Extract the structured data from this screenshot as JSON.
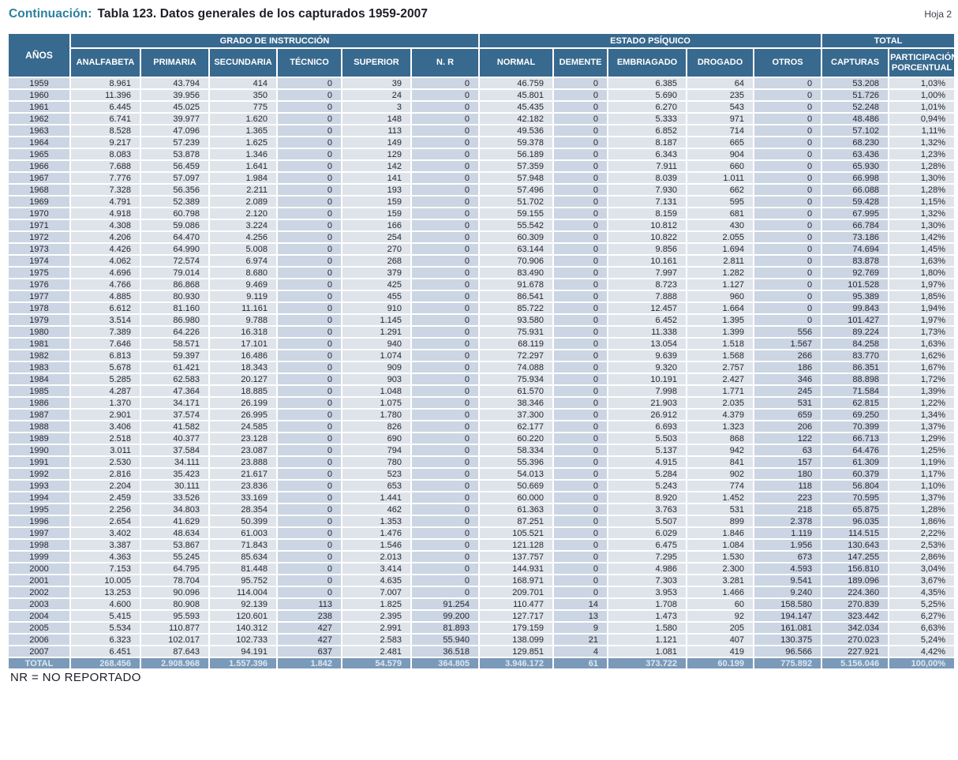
{
  "page": {
    "title_prefix": "Continuación:",
    "title_main": "Tabla 123.  Datos generales de los capturados 1959-2007",
    "sheet_label": "Hoja 2",
    "footnote": "NR = NO REPORTADO"
  },
  "colors": {
    "title_accent": "#2a7f9e",
    "header_bg": "#38698e",
    "row_bg": "#dfe3ea",
    "row_shade_bg": "#cbd5e3",
    "total_row_bg": "#7b9ab9",
    "total_row_text": "#dce8f3"
  },
  "table": {
    "groups": [
      "GRADO DE INSTRUCCIÓN",
      "ESTADO PSÍQUICO",
      "TOTAL"
    ],
    "columns": [
      "AÑOS",
      "ANALFABETA",
      "PRIMARIA",
      "SECUNDARIA",
      "TÉCNICO",
      "SUPERIOR",
      "N. R",
      "NORMAL",
      "DEMENTE",
      "EMBRIAGADO",
      "DROGADO",
      "OTROS",
      "CAPTURAS",
      "PARTICIPACIÓN PORCENTUAL"
    ],
    "rows": [
      [
        "1959",
        "8.961",
        "43.794",
        "414",
        "0",
        "39",
        "0",
        "46.759",
        "0",
        "6.385",
        "64",
        "0",
        "53.208",
        "1,03%"
      ],
      [
        "1960",
        "11.396",
        "39.956",
        "350",
        "0",
        "24",
        "0",
        "45.801",
        "0",
        "5.690",
        "235",
        "0",
        "51.726",
        "1,00%"
      ],
      [
        "1961",
        "6.445",
        "45.025",
        "775",
        "0",
        "3",
        "0",
        "45.435",
        "0",
        "6.270",
        "543",
        "0",
        "52.248",
        "1,01%"
      ],
      [
        "1962",
        "6.741",
        "39.977",
        "1.620",
        "0",
        "148",
        "0",
        "42.182",
        "0",
        "5.333",
        "971",
        "0",
        "48.486",
        "0,94%"
      ],
      [
        "1963",
        "8.528",
        "47.096",
        "1.365",
        "0",
        "113",
        "0",
        "49.536",
        "0",
        "6.852",
        "714",
        "0",
        "57.102",
        "1,11%"
      ],
      [
        "1964",
        "9.217",
        "57.239",
        "1.625",
        "0",
        "149",
        "0",
        "59.378",
        "0",
        "8.187",
        "665",
        "0",
        "68.230",
        "1,32%"
      ],
      [
        "1965",
        "8.083",
        "53.878",
        "1.346",
        "0",
        "129",
        "0",
        "56.189",
        "0",
        "6.343",
        "904",
        "0",
        "63.436",
        "1,23%"
      ],
      [
        "1966",
        "7.688",
        "56.459",
        "1.641",
        "0",
        "142",
        "0",
        "57.359",
        "0",
        "7.911",
        "660",
        "0",
        "65.930",
        "1,28%"
      ],
      [
        "1967",
        "7.776",
        "57.097",
        "1.984",
        "0",
        "141",
        "0",
        "57.948",
        "0",
        "8.039",
        "1.011",
        "0",
        "66.998",
        "1,30%"
      ],
      [
        "1968",
        "7.328",
        "56.356",
        "2.211",
        "0",
        "193",
        "0",
        "57.496",
        "0",
        "7.930",
        "662",
        "0",
        "66.088",
        "1,28%"
      ],
      [
        "1969",
        "4.791",
        "52.389",
        "2.089",
        "0",
        "159",
        "0",
        "51.702",
        "0",
        "7.131",
        "595",
        "0",
        "59.428",
        "1,15%"
      ],
      [
        "1970",
        "4.918",
        "60.798",
        "2.120",
        "0",
        "159",
        "0",
        "59.155",
        "0",
        "8.159",
        "681",
        "0",
        "67.995",
        "1,32%"
      ],
      [
        "1971",
        "4.308",
        "59.086",
        "3.224",
        "0",
        "166",
        "0",
        "55.542",
        "0",
        "10.812",
        "430",
        "0",
        "66.784",
        "1,30%"
      ],
      [
        "1972",
        "4.206",
        "64.470",
        "4.256",
        "0",
        "254",
        "0",
        "60.309",
        "0",
        "10.822",
        "2.055",
        "0",
        "73.186",
        "1,42%"
      ],
      [
        "1973",
        "4.426",
        "64.990",
        "5.008",
        "0",
        "270",
        "0",
        "63.144",
        "0",
        "9.856",
        "1.694",
        "0",
        "74.694",
        "1,45%"
      ],
      [
        "1974",
        "4.062",
        "72.574",
        "6.974",
        "0",
        "268",
        "0",
        "70.906",
        "0",
        "10.161",
        "2.811",
        "0",
        "83.878",
        "1,63%"
      ],
      [
        "1975",
        "4.696",
        "79.014",
        "8.680",
        "0",
        "379",
        "0",
        "83.490",
        "0",
        "7.997",
        "1.282",
        "0",
        "92.769",
        "1,80%"
      ],
      [
        "1976",
        "4.766",
        "86.868",
        "9.469",
        "0",
        "425",
        "0",
        "91.678",
        "0",
        "8.723",
        "1.127",
        "0",
        "101.528",
        "1,97%"
      ],
      [
        "1977",
        "4.885",
        "80.930",
        "9.119",
        "0",
        "455",
        "0",
        "86.541",
        "0",
        "7.888",
        "960",
        "0",
        "95.389",
        "1,85%"
      ],
      [
        "1978",
        "6.612",
        "81.160",
        "11.161",
        "0",
        "910",
        "0",
        "85.722",
        "0",
        "12.457",
        "1.664",
        "0",
        "99.843",
        "1,94%"
      ],
      [
        "1979",
        "3.514",
        "86.980",
        "9.788",
        "0",
        "1.145",
        "0",
        "93.580",
        "0",
        "6.452",
        "1.395",
        "0",
        "101.427",
        "1,97%"
      ],
      [
        "1980",
        "7.389",
        "64.226",
        "16.318",
        "0",
        "1.291",
        "0",
        "75.931",
        "0",
        "11.338",
        "1.399",
        "556",
        "89.224",
        "1,73%"
      ],
      [
        "1981",
        "7.646",
        "58.571",
        "17.101",
        "0",
        "940",
        "0",
        "68.119",
        "0",
        "13.054",
        "1.518",
        "1.567",
        "84.258",
        "1,63%"
      ],
      [
        "1982",
        "6.813",
        "59.397",
        "16.486",
        "0",
        "1.074",
        "0",
        "72.297",
        "0",
        "9.639",
        "1.568",
        "266",
        "83.770",
        "1,62%"
      ],
      [
        "1983",
        "5.678",
        "61.421",
        "18.343",
        "0",
        "909",
        "0",
        "74.088",
        "0",
        "9.320",
        "2.757",
        "186",
        "86.351",
        "1,67%"
      ],
      [
        "1984",
        "5.285",
        "62.583",
        "20.127",
        "0",
        "903",
        "0",
        "75.934",
        "0",
        "10.191",
        "2.427",
        "346",
        "88.898",
        "1,72%"
      ],
      [
        "1985",
        "4.287",
        "47.364",
        "18.885",
        "0",
        "1.048",
        "0",
        "61.570",
        "0",
        "7.998",
        "1.771",
        "245",
        "71.584",
        "1,39%"
      ],
      [
        "1986",
        "1.370",
        "34.171",
        "26.199",
        "0",
        "1.075",
        "0",
        "38.346",
        "0",
        "21.903",
        "2.035",
        "531",
        "62.815",
        "1,22%"
      ],
      [
        "1987",
        "2.901",
        "37.574",
        "26.995",
        "0",
        "1.780",
        "0",
        "37.300",
        "0",
        "26.912",
        "4.379",
        "659",
        "69.250",
        "1,34%"
      ],
      [
        "1988",
        "3.406",
        "41.582",
        "24.585",
        "0",
        "826",
        "0",
        "62.177",
        "0",
        "6.693",
        "1.323",
        "206",
        "70.399",
        "1,37%"
      ],
      [
        "1989",
        "2.518",
        "40.377",
        "23.128",
        "0",
        "690",
        "0",
        "60.220",
        "0",
        "5.503",
        "868",
        "122",
        "66.713",
        "1,29%"
      ],
      [
        "1990",
        "3.011",
        "37.584",
        "23.087",
        "0",
        "794",
        "0",
        "58.334",
        "0",
        "5.137",
        "942",
        "63",
        "64.476",
        "1,25%"
      ],
      [
        "1991",
        "2.530",
        "34.111",
        "23.888",
        "0",
        "780",
        "0",
        "55.396",
        "0",
        "4.915",
        "841",
        "157",
        "61.309",
        "1,19%"
      ],
      [
        "1992",
        "2.816",
        "35.423",
        "21.617",
        "0",
        "523",
        "0",
        "54.013",
        "0",
        "5.284",
        "902",
        "180",
        "60.379",
        "1,17%"
      ],
      [
        "1993",
        "2.204",
        "30.111",
        "23.836",
        "0",
        "653",
        "0",
        "50.669",
        "0",
        "5.243",
        "774",
        "118",
        "56.804",
        "1,10%"
      ],
      [
        "1994",
        "2.459",
        "33.526",
        "33.169",
        "0",
        "1.441",
        "0",
        "60.000",
        "0",
        "8.920",
        "1.452",
        "223",
        "70.595",
        "1,37%"
      ],
      [
        "1995",
        "2.256",
        "34.803",
        "28.354",
        "0",
        "462",
        "0",
        "61.363",
        "0",
        "3.763",
        "531",
        "218",
        "65.875",
        "1,28%"
      ],
      [
        "1996",
        "2.654",
        "41.629",
        "50.399",
        "0",
        "1.353",
        "0",
        "87.251",
        "0",
        "5.507",
        "899",
        "2.378",
        "96.035",
        "1,86%"
      ],
      [
        "1997",
        "3.402",
        "48.634",
        "61.003",
        "0",
        "1.476",
        "0",
        "105.521",
        "0",
        "6.029",
        "1.846",
        "1.119",
        "114.515",
        "2,22%"
      ],
      [
        "1998",
        "3.387",
        "53.867",
        "71.843",
        "0",
        "1.546",
        "0",
        "121.128",
        "0",
        "6.475",
        "1.084",
        "1.956",
        "130.643",
        "2,53%"
      ],
      [
        "1999",
        "4.363",
        "55.245",
        "85.634",
        "0",
        "2.013",
        "0",
        "137.757",
        "0",
        "7.295",
        "1.530",
        "673",
        "147.255",
        "2,86%"
      ],
      [
        "2000",
        "7.153",
        "64.795",
        "81.448",
        "0",
        "3.414",
        "0",
        "144.931",
        "0",
        "4.986",
        "2.300",
        "4.593",
        "156.810",
        "3,04%"
      ],
      [
        "2001",
        "10.005",
        "78.704",
        "95.752",
        "0",
        "4.635",
        "0",
        "168.971",
        "0",
        "7.303",
        "3.281",
        "9.541",
        "189.096",
        "3,67%"
      ],
      [
        "2002",
        "13.253",
        "90.096",
        "114.004",
        "0",
        "7.007",
        "0",
        "209.701",
        "0",
        "3.953",
        "1.466",
        "9.240",
        "224.360",
        "4,35%"
      ],
      [
        "2003",
        "4.600",
        "80.908",
        "92.139",
        "113",
        "1.825",
        "91.254",
        "110.477",
        "14",
        "1.708",
        "60",
        "158.580",
        "270.839",
        "5,25%"
      ],
      [
        "2004",
        "5.415",
        "95.593",
        "120.601",
        "238",
        "2.395",
        "99.200",
        "127.717",
        "13",
        "1.473",
        "92",
        "194.147",
        "323.442",
        "6,27%"
      ],
      [
        "2005",
        "5.534",
        "110.877",
        "140.312",
        "427",
        "2.991",
        "81.893",
        "179.159",
        "9",
        "1.580",
        "205",
        "161.081",
        "342.034",
        "6,63%"
      ],
      [
        "2006",
        "6.323",
        "102.017",
        "102.733",
        "427",
        "2.583",
        "55.940",
        "138.099",
        "21",
        "1.121",
        "407",
        "130.375",
        "270.023",
        "5,24%"
      ],
      [
        "2007",
        "6.451",
        "87.643",
        "94.191",
        "637",
        "2.481",
        "36.518",
        "129.851",
        "4",
        "1.081",
        "419",
        "96.566",
        "227.921",
        "4,42%"
      ]
    ],
    "total_row": [
      "TOTAL",
      "268.456",
      "2.908.968",
      "1.557.396",
      "1.842",
      "54.579",
      "364.805",
      "3.946.172",
      "61",
      "373.722",
      "60.199",
      "775.892",
      "5.156.046",
      "100,00%"
    ]
  }
}
